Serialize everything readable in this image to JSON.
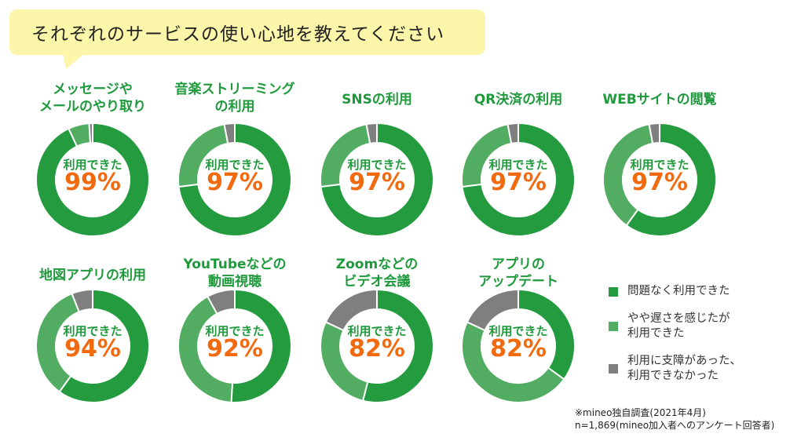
{
  "header": {
    "question": "それぞれのサービスの使い心地を教えてください"
  },
  "colors": {
    "no_problem": "#239b3e",
    "slightly_slow": "#52ad62",
    "problem": "#7f7f7f",
    "title": "#1e9a3c",
    "percent": "#f26a0f",
    "bubble": "#fbf6a9"
  },
  "chart_data": {
    "type": "pie",
    "variant": "donut",
    "center_label": "利用できた",
    "series_names": [
      "問題なく利用できた",
      "やや遅さを感じたが利用できた",
      "利用に支障があった、利用できなかった"
    ],
    "charts": [
      {
        "title": "メッセージや\nメールのやり取り",
        "percent_label": "99%",
        "values": [
          93,
          6,
          1
        ]
      },
      {
        "title": "音楽ストリーミング\nの利用",
        "percent_label": "97%",
        "values": [
          73,
          24,
          3
        ]
      },
      {
        "title": "SNSの利用",
        "percent_label": "97%",
        "values": [
          73,
          24,
          3
        ]
      },
      {
        "title": "QR決済の利用",
        "percent_label": "97%",
        "values": [
          73,
          24,
          3
        ]
      },
      {
        "title": "WEBサイトの閲覧",
        "percent_label": "97%",
        "values": [
          60,
          37,
          3
        ]
      },
      {
        "title": "地図アプリの利用",
        "percent_label": "94%",
        "values": [
          60,
          34,
          6
        ]
      },
      {
        "title": "YouTubeなどの\n動画視聴",
        "percent_label": "92%",
        "values": [
          51,
          41,
          8
        ]
      },
      {
        "title": "Zoomなどの\nビデオ会議",
        "percent_label": "82%",
        "values": [
          54,
          28,
          18
        ]
      },
      {
        "title": "アプリの\nアップデート",
        "percent_label": "82%",
        "values": [
          35,
          47,
          18
        ]
      }
    ]
  },
  "legend": [
    {
      "label": "問題なく利用できた"
    },
    {
      "label": "やや遅さを感じたが\n利用できた"
    },
    {
      "label": "利用に支障があった、\n利用できなかった"
    }
  ],
  "note": "※mineo独自調査(2021年4月)\nn=1,869(mineo加入者へのアンケート回答者)"
}
